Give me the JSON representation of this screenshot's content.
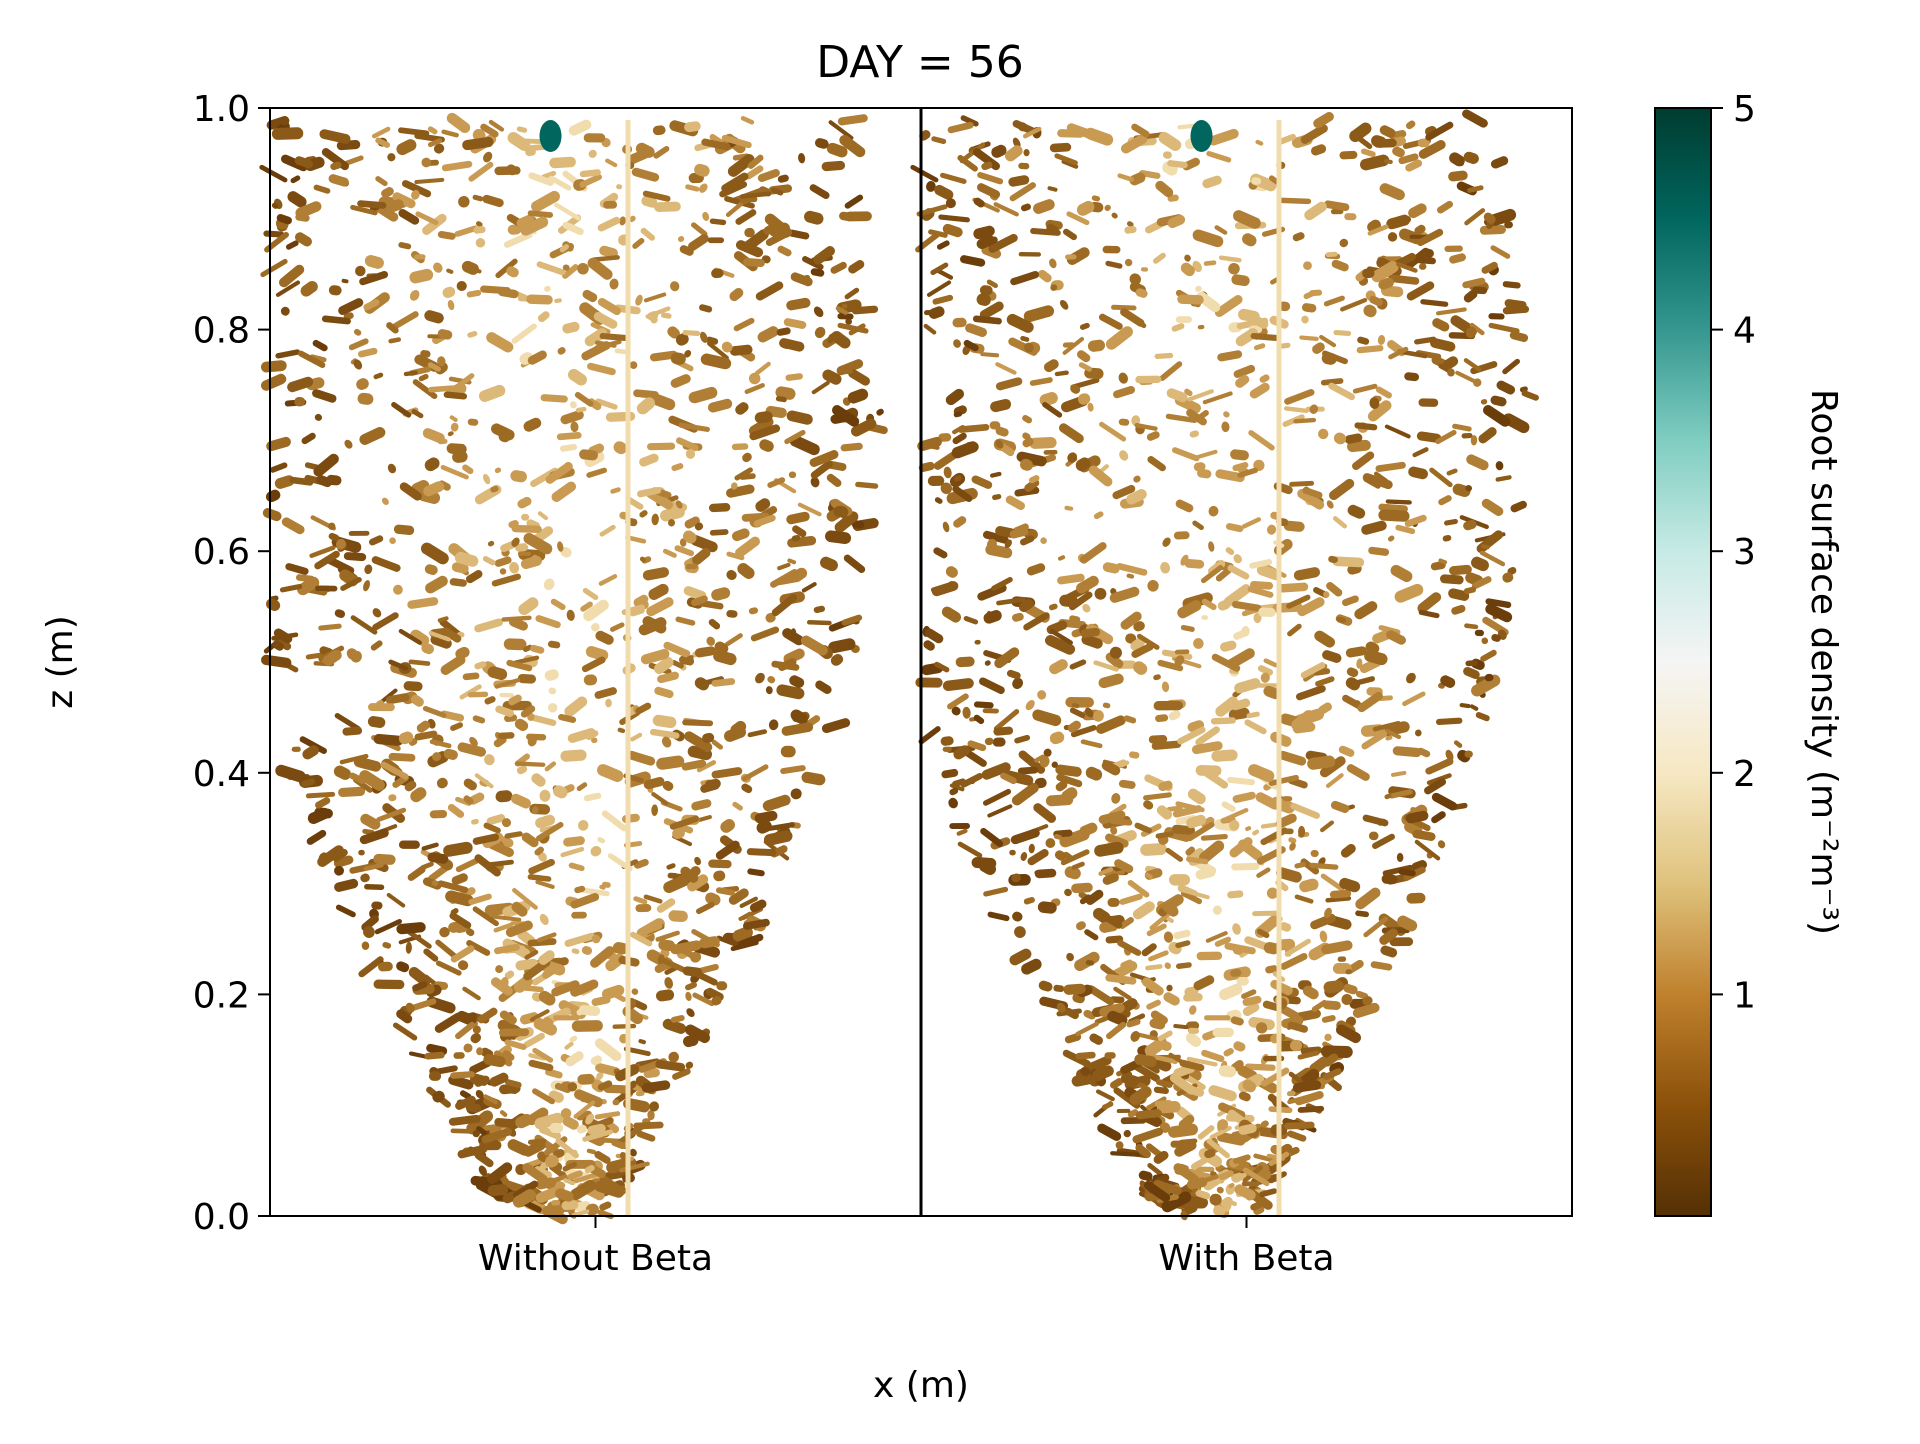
{
  "chart_data": {
    "type": "heatmap",
    "title": "DAY = 56",
    "xlabel": "x (m)",
    "ylabel": "z (m)",
    "ylim": [
      0.0,
      1.0
    ],
    "y_ticks": [
      "0.0",
      "0.2",
      "0.4",
      "0.6",
      "0.8",
      "1.0"
    ],
    "panels": [
      {
        "label": "Without Beta"
      },
      {
        "label": "With Beta"
      }
    ],
    "colorbar": {
      "label": "Root surface density (m⁻²m⁻³)",
      "range": [
        0,
        5
      ],
      "ticks": [
        "1",
        "2",
        "3",
        "4",
        "5"
      ],
      "colormap": [
        "#543005",
        "#8c510a",
        "#bf812d",
        "#dfc27d",
        "#f6e8c3",
        "#f5f5f5",
        "#c7eae5",
        "#80cdc1",
        "#35978f",
        "#01665e",
        "#003c30"
      ]
    },
    "legend": "none",
    "grid": false
  }
}
